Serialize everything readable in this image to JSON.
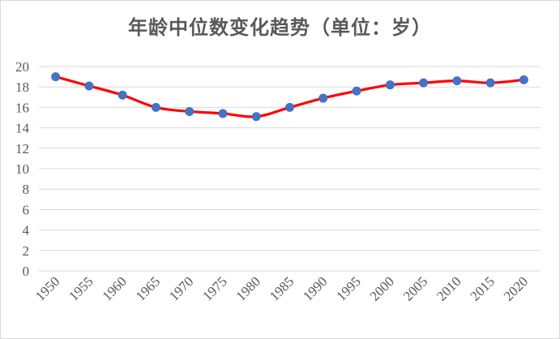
{
  "chart_data": {
    "type": "line",
    "title": "年龄中位数变化趋势（单位：岁）",
    "xlabel": "",
    "ylabel": "",
    "ylim": [
      0,
      20
    ],
    "yticks": [
      0,
      2,
      4,
      6,
      8,
      10,
      12,
      14,
      16,
      18,
      20
    ],
    "grid": true,
    "legend": "none",
    "x": [
      "1950",
      "1955",
      "1960",
      "1965",
      "1970",
      "1975",
      "1980",
      "1985",
      "1990",
      "1995",
      "2000",
      "2005",
      "2010",
      "2015",
      "2020"
    ],
    "series": [
      {
        "values": [
          19.0,
          18.1,
          17.2,
          16.0,
          15.6,
          15.4,
          15.1,
          16.0,
          16.9,
          17.6,
          18.2,
          18.4,
          18.6,
          18.4,
          18.7
        ],
        "line_color": "#ff0000",
        "marker_color": "#4472c4"
      }
    ],
    "grid_color": "#d9d9d9"
  }
}
